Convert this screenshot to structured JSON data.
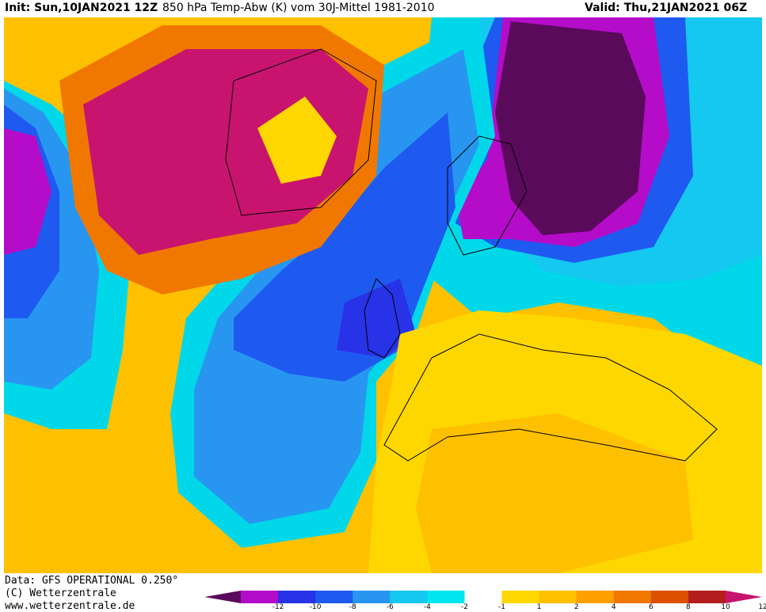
{
  "header": {
    "init": "Init: Sun,10JAN2021 12Z",
    "title": "850 hPa Temp-Abw (K) vom 30J-Mittel 1981-2010",
    "valid": "Valid: Thu,21JAN2021 06Z"
  },
  "footer": {
    "data": "Data: GFS OPERATIONAL 0.250°",
    "copyright": "(C) Wetterzentrale",
    "url": "www.wetterzentrale.de"
  },
  "legend": {
    "colors": [
      "#5a0a5a",
      "#b40cc8",
      "#2832e6",
      "#1e5af0",
      "#2896f0",
      "#14c8f0",
      "#00e6f0",
      "#ffffff",
      "#ffd700",
      "#ffc000",
      "#ffa000",
      "#f07800",
      "#dc5000",
      "#b41e1e",
      "#c8146e"
    ],
    "labels": [
      "-12",
      "-10",
      "-8",
      "-6",
      "-4",
      "-2",
      "-1",
      "1",
      "2",
      "4",
      "6",
      "8",
      "10",
      "12"
    ]
  }
}
